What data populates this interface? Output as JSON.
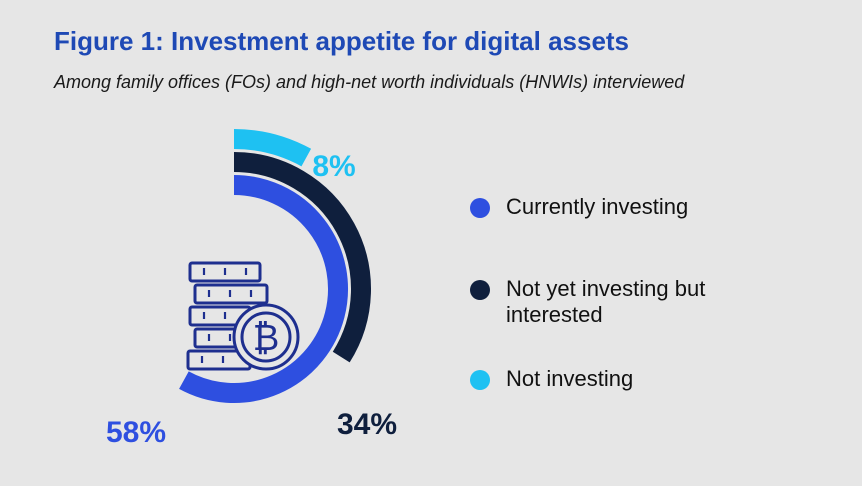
{
  "figure": {
    "title": "Figure 1: Investment appetite for digital assets",
    "subtitle": "Among family offices (FOs) and high-net worth individuals (HNWIs) interviewed"
  },
  "colors": {
    "background": "#e6e6e6",
    "title": "#1e49b5",
    "currently_investing": "#2e4fe0",
    "not_yet_interested": "#0f1f3d",
    "not_investing": "#1ec1f2",
    "icon": "#1e2f8f"
  },
  "icon": "bitcoin-coins-stack-icon",
  "chart_data": {
    "type": "radial-bar",
    "series": [
      {
        "name": "Currently investing",
        "value": 58,
        "label": "58%",
        "color": "#2e4fe0"
      },
      {
        "name": "Not yet investing but interested",
        "value": 34,
        "label": "34%",
        "color": "#0f1f3d"
      },
      {
        "name": "Not investing",
        "value": 8,
        "label": "8%",
        "color": "#1ec1f2"
      }
    ],
    "max": 100,
    "legend_position": "right"
  }
}
